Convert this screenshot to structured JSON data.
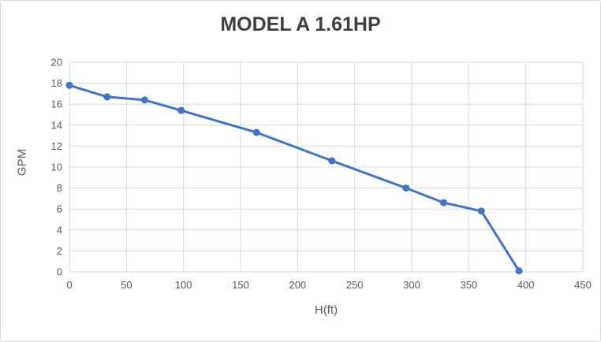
{
  "chart": {
    "background": "#ffffff",
    "border_color": "#d7d7d7"
  },
  "chart_data": {
    "type": "line",
    "title": "MODEL A 1.61HP",
    "xlabel": "H(ft)",
    "ylabel": "GPM",
    "x": [
      0,
      33,
      66,
      98,
      164,
      230,
      295,
      328,
      361,
      394
    ],
    "y": [
      17.8,
      16.7,
      16.4,
      15.4,
      13.3,
      10.6,
      8,
      6.6,
      5.8,
      0.1
    ],
    "xlim": [
      0,
      450
    ],
    "ylim": [
      0,
      20
    ],
    "x_ticks": [
      0,
      50,
      100,
      150,
      200,
      250,
      300,
      350,
      400,
      450
    ],
    "y_ticks": [
      0,
      2,
      4,
      6,
      8,
      10,
      12,
      14,
      16,
      18,
      20
    ],
    "grid": true,
    "legend": "none",
    "line_color": "#4472c4",
    "marker": "circle",
    "marker_radius": 4.5,
    "line_width": 3,
    "gridline_color": "#d9d9d9",
    "axis_text_color": "#595959",
    "title_color": "#3f3f3f"
  }
}
